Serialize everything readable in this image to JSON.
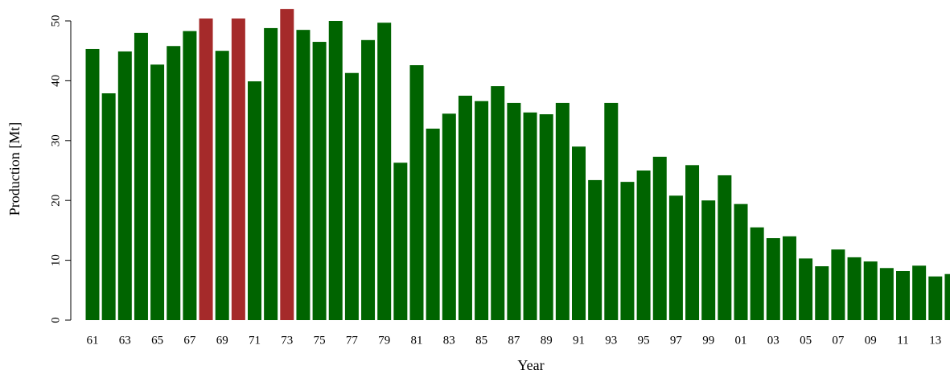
{
  "chart_data": {
    "type": "bar",
    "x_label": "Year",
    "y_label": "Production [Mt]",
    "categories": [
      "61",
      null,
      "63",
      null,
      "65",
      null,
      "67",
      null,
      "69",
      null,
      "71",
      null,
      "73",
      null,
      "75",
      null,
      "77",
      null,
      "79",
      null,
      "81",
      null,
      "83",
      null,
      "85",
      null,
      "87",
      null,
      "89",
      null,
      "91",
      null,
      "93",
      null,
      "95",
      null,
      "97",
      null,
      "99",
      null,
      "01",
      null,
      "03",
      null,
      "05",
      null,
      "07",
      null,
      "09",
      null,
      "11",
      null,
      "13",
      null
    ],
    "values": [
      45.3,
      37.9,
      44.9,
      48.0,
      42.7,
      45.8,
      48.3,
      50.4,
      45.0,
      50.4,
      39.9,
      48.8,
      52.0,
      48.5,
      46.5,
      50.0,
      41.3,
      46.8,
      49.7,
      26.3,
      42.6,
      32.0,
      34.5,
      37.5,
      36.6,
      39.1,
      36.3,
      34.7,
      34.4,
      36.3,
      29.0,
      23.4,
      36.3,
      23.1,
      25.0,
      27.3,
      20.8,
      25.9,
      20.0,
      24.2,
      19.4,
      15.5,
      13.7,
      14.0,
      10.3,
      9.0,
      11.8,
      10.5,
      9.8,
      8.7,
      8.2,
      9.1,
      7.3,
      7.7
    ],
    "colors": [
      "#006400",
      "#006400",
      "#006400",
      "#006400",
      "#006400",
      "#006400",
      "#006400",
      "#a52a2a",
      "#006400",
      "#a52a2a",
      "#006400",
      "#006400",
      "#a52a2a",
      "#006400",
      "#006400",
      "#006400",
      "#006400",
      "#006400",
      "#006400",
      "#006400",
      "#006400",
      "#006400",
      "#006400",
      "#006400",
      "#006400",
      "#006400",
      "#006400",
      "#006400",
      "#006400",
      "#006400",
      "#006400",
      "#006400",
      "#006400",
      "#006400",
      "#006400",
      "#006400",
      "#006400",
      "#006400",
      "#006400",
      "#006400",
      "#006400",
      "#006400",
      "#006400",
      "#006400",
      "#006400",
      "#006400",
      "#006400",
      "#006400",
      "#006400",
      "#006400",
      "#006400",
      "#006400",
      "#006400",
      "#006400"
    ],
    "ylim": [
      0,
      50
    ],
    "yticks": [
      0,
      10,
      20,
      30,
      40,
      50
    ]
  }
}
